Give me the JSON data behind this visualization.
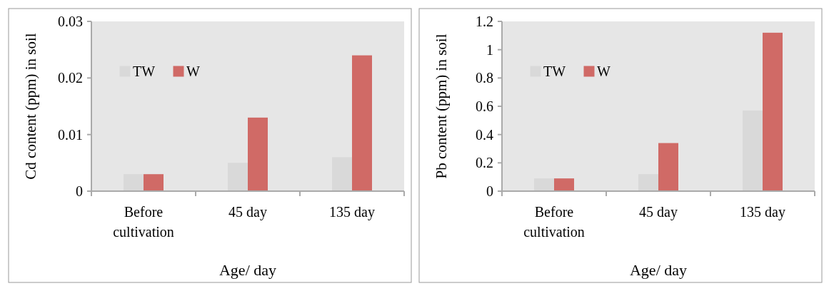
{
  "chart_data": [
    {
      "type": "bar",
      "categories": [
        "Before cultivation",
        "45 day",
        "135 day"
      ],
      "xlabel": "Age/ day",
      "ylabel": "Cd content (ppm) in soil",
      "ylim": [
        0,
        0.03
      ],
      "yticks": [
        0,
        0.01,
        0.02,
        0.03
      ],
      "legend": "top left",
      "grid": false,
      "series": [
        {
          "name": "TW",
          "color": "#d9d9d9",
          "values": [
            0.003,
            0.005,
            0.006
          ]
        },
        {
          "name": "W",
          "color": "#d06a66",
          "values": [
            0.003,
            0.013,
            0.024
          ]
        }
      ]
    },
    {
      "type": "bar",
      "categories": [
        "Before cultivation",
        "45 day",
        "135 day"
      ],
      "xlabel": "Age/ day",
      "ylabel": "Pb content (ppm) in soil",
      "ylim": [
        0,
        1.2
      ],
      "yticks": [
        0,
        0.2,
        0.4,
        0.6,
        0.8,
        1,
        1.2
      ],
      "legend": "top left",
      "grid": false,
      "series": [
        {
          "name": "TW",
          "color": "#d9d9d9",
          "values": [
            0.09,
            0.12,
            0.57
          ]
        },
        {
          "name": "W",
          "color": "#d06a66",
          "values": [
            0.09,
            0.34,
            1.12
          ]
        }
      ]
    }
  ]
}
